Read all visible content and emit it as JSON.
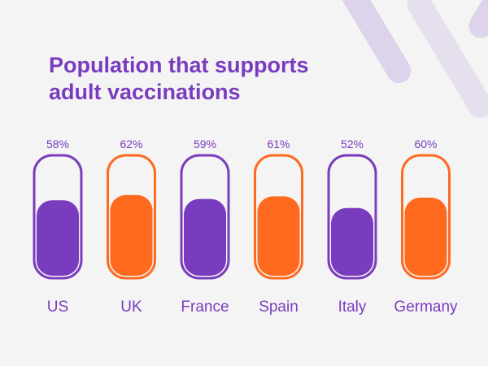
{
  "chart_data": {
    "type": "bar",
    "title": "Population that supports adult vaccinations",
    "title_lines": [
      "Population that supports",
      "adult vaccinations"
    ],
    "categories": [
      "US",
      "UK",
      "France",
      "Spain",
      "Italy",
      "Germany"
    ],
    "values": [
      58,
      62,
      59,
      61,
      52,
      60
    ],
    "value_labels": [
      "58%",
      "62%",
      "59%",
      "61%",
      "52%",
      "60%"
    ],
    "unit": "%",
    "ylim": [
      0,
      100
    ],
    "xlabel": "",
    "ylabel": "",
    "grid": false,
    "colors": [
      "#7a3cbf",
      "#ff6a1f",
      "#7a3cbf",
      "#ff6a1f",
      "#7a3cbf",
      "#ff6a1f"
    ],
    "label_color": "#7a3cbf"
  }
}
